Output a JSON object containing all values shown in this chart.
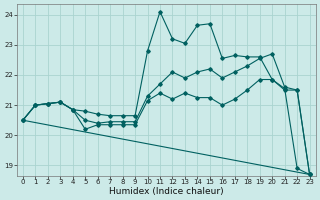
{
  "xlabel": "Humidex (Indice chaleur)",
  "background_color": "#cceae8",
  "grid_color": "#aad4d0",
  "line_color": "#006060",
  "xlim": [
    -0.5,
    23.5
  ],
  "ylim": [
    18.65,
    24.35
  ],
  "yticks": [
    19,
    20,
    21,
    22,
    23,
    24
  ],
  "xticks": [
    0,
    1,
    2,
    3,
    4,
    5,
    6,
    7,
    8,
    9,
    10,
    11,
    12,
    13,
    14,
    15,
    16,
    17,
    18,
    19,
    20,
    21,
    22,
    23
  ],
  "line1_x": [
    0,
    1,
    2,
    3,
    4,
    5,
    6,
    7,
    8,
    9,
    10,
    11,
    12,
    13,
    14,
    15,
    16,
    17,
    18,
    19,
    20,
    21,
    22,
    23
  ],
  "line1_y": [
    20.5,
    21.0,
    21.05,
    21.1,
    20.85,
    20.8,
    20.7,
    20.65,
    20.65,
    20.65,
    22.8,
    24.1,
    23.2,
    23.05,
    23.65,
    23.7,
    22.55,
    22.65,
    22.6,
    22.6,
    21.85,
    21.55,
    18.9,
    18.7
  ],
  "line2_x": [
    0,
    1,
    2,
    3,
    4,
    5,
    6,
    7,
    8,
    9,
    10,
    11,
    12,
    13,
    14,
    15,
    16,
    17,
    18,
    19,
    20,
    21,
    22,
    23
  ],
  "line2_y": [
    20.5,
    21.0,
    21.05,
    21.1,
    20.85,
    20.2,
    20.35,
    20.35,
    20.35,
    20.35,
    21.15,
    21.4,
    21.2,
    21.4,
    21.25,
    21.25,
    21.0,
    21.2,
    21.5,
    21.85,
    21.85,
    21.5,
    21.5,
    18.7
  ],
  "line3_x": [
    0,
    1,
    2,
    3,
    4,
    5,
    6,
    7,
    8,
    9,
    10,
    11,
    12,
    13,
    14,
    15,
    16,
    17,
    18,
    19,
    20,
    21,
    22,
    23
  ],
  "line3_y": [
    20.5,
    21.0,
    21.05,
    21.1,
    20.85,
    20.5,
    20.4,
    20.45,
    20.45,
    20.45,
    21.3,
    21.7,
    22.1,
    21.9,
    22.1,
    22.2,
    21.9,
    22.1,
    22.3,
    22.55,
    22.7,
    21.6,
    21.5,
    18.7
  ],
  "line4_x": [
    0,
    23
  ],
  "line4_y": [
    20.5,
    18.7
  ]
}
